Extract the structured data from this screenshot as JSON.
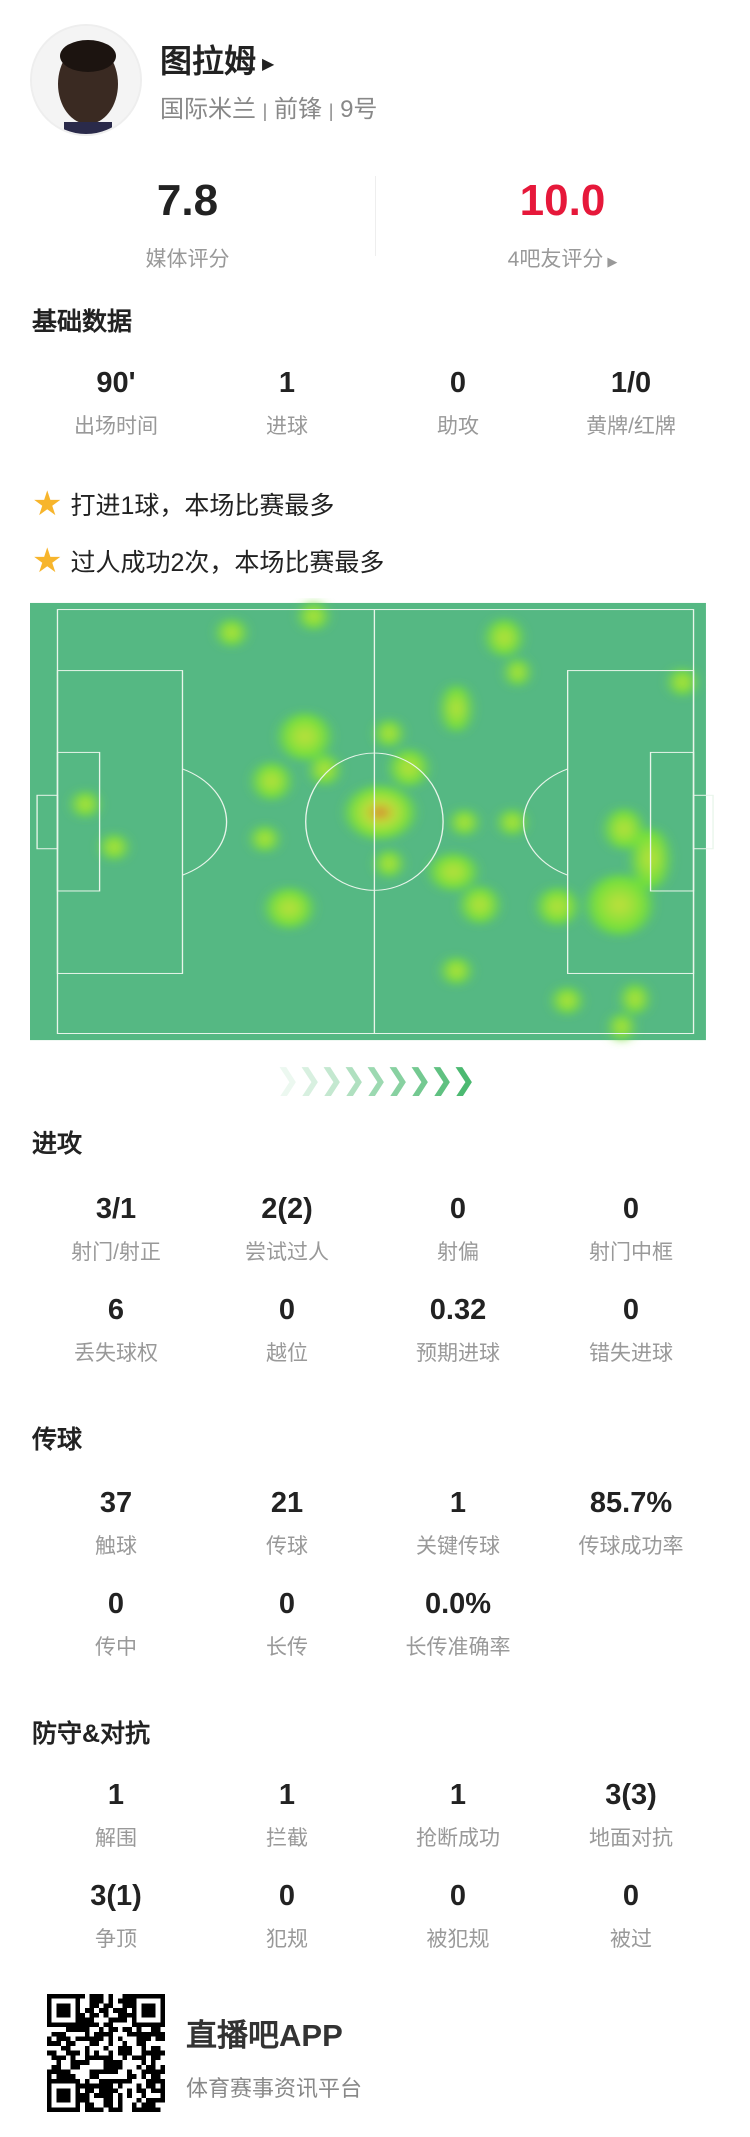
{
  "player": {
    "name": "图拉姆",
    "team": "国际米兰",
    "position": "前锋",
    "number": "9号",
    "separator": "|"
  },
  "ratings": {
    "media": {
      "value": "7.8",
      "label": "媒体评分",
      "color": "#222222"
    },
    "fans": {
      "value": "10.0",
      "label": "4吧友评分",
      "color": "#e6183a"
    }
  },
  "basic": {
    "title": "基础数据",
    "items": [
      {
        "v": "90'",
        "l": "出场时间"
      },
      {
        "v": "1",
        "l": "进球"
      },
      {
        "v": "0",
        "l": "助攻"
      },
      {
        "v": "1/0",
        "l": "黄牌/红牌"
      }
    ]
  },
  "highlights": [
    "打进1球，本场比赛最多",
    "过人成功2次，本场比赛最多"
  ],
  "heatmap": {
    "pitch_color": "#55b883",
    "hot_color": "#d9542a",
    "warm_color": "#c6e03a",
    "cool_color": "#66e03a"
  },
  "attack": {
    "title": "进攻",
    "items": [
      {
        "v": "3/1",
        "l": "射门/射正"
      },
      {
        "v": "2(2)",
        "l": "尝试过人"
      },
      {
        "v": "0",
        "l": "射偏"
      },
      {
        "v": "0",
        "l": "射门中框"
      },
      {
        "v": "6",
        "l": "丢失球权"
      },
      {
        "v": "0",
        "l": "越位"
      },
      {
        "v": "0.32",
        "l": "预期进球"
      },
      {
        "v": "0",
        "l": "错失进球"
      }
    ]
  },
  "passing": {
    "title": "传球",
    "items": [
      {
        "v": "37",
        "l": "触球"
      },
      {
        "v": "21",
        "l": "传球"
      },
      {
        "v": "1",
        "l": "关键传球"
      },
      {
        "v": "85.7%",
        "l": "传球成功率"
      },
      {
        "v": "0",
        "l": "传中"
      },
      {
        "v": "0",
        "l": "长传"
      },
      {
        "v": "0.0%",
        "l": "长传准确率"
      }
    ]
  },
  "defense": {
    "title": "防守&对抗",
    "items": [
      {
        "v": "1",
        "l": "解围"
      },
      {
        "v": "1",
        "l": "拦截"
      },
      {
        "v": "1",
        "l": "抢断成功"
      },
      {
        "v": "3(3)",
        "l": "地面对抗"
      },
      {
        "v": "3(1)",
        "l": "争顶"
      },
      {
        "v": "0",
        "l": "犯规"
      },
      {
        "v": "0",
        "l": "被犯规"
      },
      {
        "v": "0",
        "l": "被过"
      }
    ]
  },
  "footer": {
    "app_name": "直播吧APP",
    "slogan": "体育赛事资讯平台"
  }
}
